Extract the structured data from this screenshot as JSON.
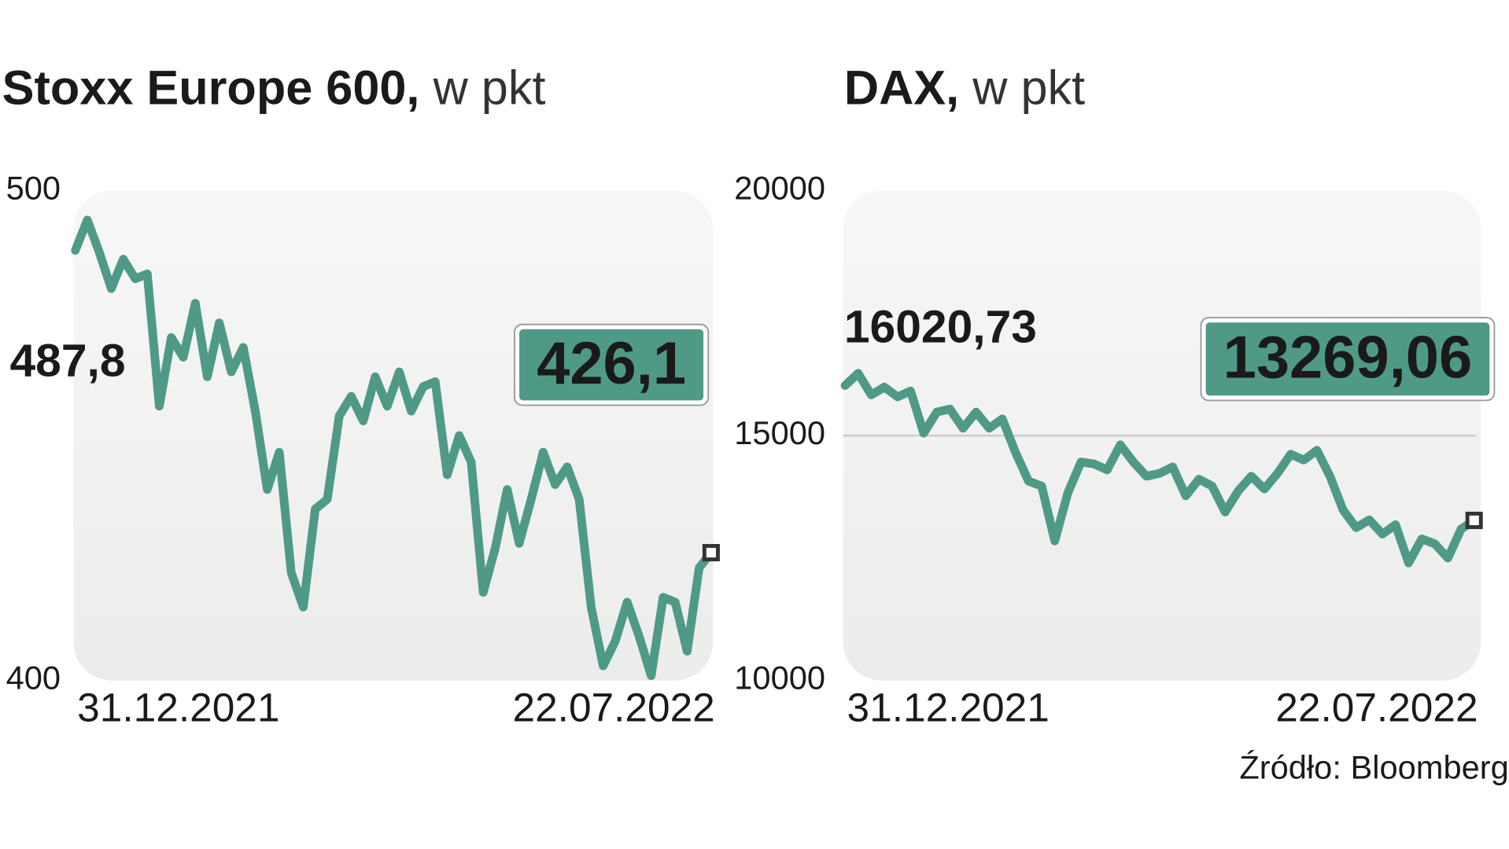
{
  "source": "Źródło: Bloomberg",
  "chart_data": [
    {
      "type": "line",
      "title": "Stoxx Europe 600,",
      "unit": "w pkt",
      "categories": [
        "31.12.2021",
        null,
        null,
        null,
        null,
        null,
        null,
        null,
        null,
        null,
        null,
        null,
        null,
        null,
        null,
        null,
        null,
        null,
        null,
        null,
        null,
        null,
        null,
        null,
        null,
        null,
        null,
        null,
        null,
        null,
        null,
        null,
        null,
        null,
        null,
        null,
        null,
        null,
        null,
        null,
        null,
        null,
        null,
        null,
        null,
        null,
        null,
        null,
        null,
        null,
        null,
        null,
        null,
        "22.07.2022"
      ],
      "series": [
        {
          "color": "#4f9a87",
          "values": [
            487.8,
            494,
            487.4,
            480,
            486,
            482,
            483,
            456,
            470,
            466,
            477,
            462,
            473,
            463,
            468,
            455,
            439,
            446.6,
            422,
            415,
            435,
            437,
            454,
            458,
            453,
            462,
            456,
            463,
            455,
            460,
            461,
            442,
            450,
            444.6,
            418,
            427,
            439,
            428,
            437,
            446.6,
            440,
            443.6,
            437,
            415,
            403,
            408,
            416,
            409,
            401,
            417,
            416,
            406,
            423,
            426.1
          ],
          "value_labels": [
            "487,8",
            null,
            null,
            null,
            null,
            null,
            null,
            null,
            null,
            null,
            null,
            null,
            null,
            null,
            null,
            null,
            null,
            null,
            null,
            null,
            null,
            null,
            null,
            null,
            null,
            null,
            null,
            null,
            null,
            null,
            null,
            null,
            null,
            null,
            null,
            null,
            null,
            null,
            null,
            null,
            null,
            null,
            null,
            null,
            null,
            null,
            null,
            null,
            null,
            null,
            null,
            null,
            null,
            "426,1"
          ]
        }
      ],
      "ylim": [
        400,
        500
      ],
      "yticks": [
        400,
        500
      ],
      "grid": false
    },
    {
      "type": "line",
      "title": "DAX,",
      "unit": "w pkt",
      "categories": [
        "31.12.2021",
        null,
        null,
        null,
        null,
        null,
        null,
        null,
        null,
        null,
        null,
        null,
        null,
        null,
        null,
        null,
        null,
        null,
        null,
        null,
        null,
        null,
        null,
        null,
        null,
        null,
        null,
        null,
        null,
        null,
        null,
        null,
        null,
        null,
        null,
        null,
        null,
        null,
        null,
        null,
        null,
        null,
        null,
        null,
        null,
        null,
        null,
        null,
        "22.07.2022"
      ],
      "series": [
        {
          "color": "#4f9a87",
          "values": [
            16020.73,
            16270,
            15830,
            15990,
            15790,
            15910,
            15050,
            15480,
            15540,
            15150,
            15480,
            15150,
            15340,
            14660,
            14070,
            13970,
            12850,
            13830,
            14460,
            14420,
            14300,
            14810,
            14460,
            14170,
            14230,
            14360,
            13770,
            14110,
            13970,
            13440,
            13870,
            14170,
            13910,
            14230,
            14620,
            14500,
            14700,
            14170,
            13480,
            13120,
            13280,
            12990,
            13180,
            12400,
            12890,
            12790,
            12500,
            13090,
            13269.06
          ],
          "value_labels": [
            "16020,73",
            null,
            null,
            null,
            null,
            null,
            null,
            null,
            null,
            null,
            null,
            null,
            null,
            null,
            null,
            null,
            null,
            null,
            null,
            null,
            null,
            null,
            null,
            null,
            null,
            null,
            null,
            null,
            null,
            null,
            null,
            null,
            null,
            null,
            null,
            null,
            null,
            null,
            null,
            null,
            null,
            null,
            null,
            null,
            null,
            null,
            null,
            null,
            "13269,06"
          ]
        }
      ],
      "ylim": [
        10000,
        20000
      ],
      "yticks": [
        10000,
        15000,
        20000
      ],
      "grid": true
    }
  ]
}
